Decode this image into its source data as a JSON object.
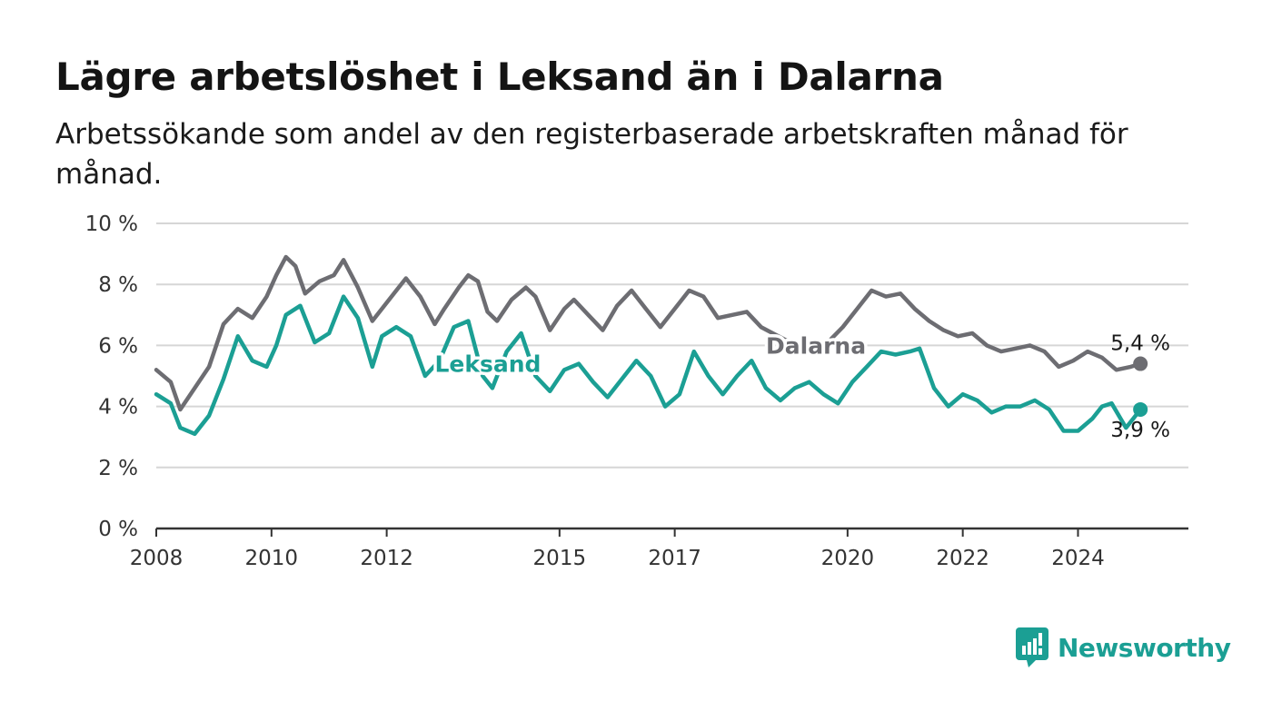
{
  "title": "Lägre arbetslöshet i Leksand än i Dalarna",
  "subtitle": "Arbetssökande som andel av den registerbaserade arbetskraften månad för månad.",
  "brand": {
    "name": "Newsworthy",
    "icon": "newsworthy-logo-icon",
    "color": "#1b9f94"
  },
  "chart_data": {
    "type": "line",
    "title": "Lägre arbetslöshet i Leksand än i Dalarna",
    "subtitle": "Arbetssökande som andel av den registerbaserade arbetskraften månad för månad.",
    "xlabel": "",
    "ylabel": "",
    "xlim": [
      "2008-01",
      "2025-12"
    ],
    "ylim": [
      0,
      10
    ],
    "x_ticks": [
      "2008",
      "2010",
      "2012",
      "2015",
      "2017",
      "2020",
      "2022",
      "2024"
    ],
    "y_ticks": [
      "0 %",
      "2 %",
      "4 %",
      "6 %",
      "8 %",
      "10 %"
    ],
    "y_tick_values": [
      0,
      2,
      4,
      6,
      8,
      10
    ],
    "grid": "horizontal",
    "legend": "inline labels",
    "series": [
      {
        "name": "Dalarna",
        "color": "#6d6d72",
        "end_label": "5,4 %",
        "points": [
          [
            "2008-01",
            5.2
          ],
          [
            "2008-04",
            4.8
          ],
          [
            "2008-06",
            3.9
          ],
          [
            "2008-09",
            4.6
          ],
          [
            "2008-12",
            5.3
          ],
          [
            "2009-03",
            6.7
          ],
          [
            "2009-06",
            7.2
          ],
          [
            "2009-09",
            6.9
          ],
          [
            "2009-12",
            7.6
          ],
          [
            "2010-02",
            8.3
          ],
          [
            "2010-04",
            8.9
          ],
          [
            "2010-06",
            8.6
          ],
          [
            "2010-08",
            7.7
          ],
          [
            "2010-11",
            8.1
          ],
          [
            "2011-02",
            8.3
          ],
          [
            "2011-04",
            8.8
          ],
          [
            "2011-07",
            7.9
          ],
          [
            "2011-10",
            6.8
          ],
          [
            "2011-12",
            7.2
          ],
          [
            "2012-03",
            7.8
          ],
          [
            "2012-05",
            8.2
          ],
          [
            "2012-08",
            7.6
          ],
          [
            "2012-11",
            6.7
          ],
          [
            "2013-01",
            7.2
          ],
          [
            "2013-04",
            7.9
          ],
          [
            "2013-06",
            8.3
          ],
          [
            "2013-08",
            8.1
          ],
          [
            "2013-10",
            7.1
          ],
          [
            "2013-12",
            6.8
          ],
          [
            "2014-03",
            7.5
          ],
          [
            "2014-06",
            7.9
          ],
          [
            "2014-08",
            7.6
          ],
          [
            "2014-11",
            6.5
          ],
          [
            "2015-02",
            7.2
          ],
          [
            "2015-04",
            7.5
          ],
          [
            "2015-07",
            7.0
          ],
          [
            "2015-10",
            6.5
          ],
          [
            "2016-01",
            7.3
          ],
          [
            "2016-04",
            7.8
          ],
          [
            "2016-07",
            7.2
          ],
          [
            "2016-10",
            6.6
          ],
          [
            "2017-01",
            7.2
          ],
          [
            "2017-04",
            7.8
          ],
          [
            "2017-07",
            7.6
          ],
          [
            "2017-10",
            6.9
          ],
          [
            "2018-01",
            7.0
          ],
          [
            "2018-04",
            7.1
          ],
          [
            "2018-07",
            6.6
          ],
          [
            "2019-01",
            6.1
          ],
          [
            "2019-07",
            5.8
          ],
          [
            "2019-12",
            6.6
          ],
          [
            "2020-03",
            7.2
          ],
          [
            "2020-06",
            7.8
          ],
          [
            "2020-09",
            7.6
          ],
          [
            "2020-12",
            7.7
          ],
          [
            "2021-03",
            7.2
          ],
          [
            "2021-06",
            6.8
          ],
          [
            "2021-09",
            6.5
          ],
          [
            "2021-12",
            6.3
          ],
          [
            "2022-03",
            6.4
          ],
          [
            "2022-06",
            6.0
          ],
          [
            "2022-09",
            5.8
          ],
          [
            "2022-12",
            5.9
          ],
          [
            "2023-03",
            6.0
          ],
          [
            "2023-06",
            5.8
          ],
          [
            "2023-09",
            5.3
          ],
          [
            "2023-12",
            5.5
          ],
          [
            "2024-03",
            5.8
          ],
          [
            "2024-06",
            5.6
          ],
          [
            "2024-09",
            5.2
          ],
          [
            "2024-12",
            5.3
          ],
          [
            "2025-02",
            5.4
          ]
        ]
      },
      {
        "name": "Leksand",
        "color": "#1b9f94",
        "end_label": "3,9 %",
        "points": [
          [
            "2008-01",
            4.4
          ],
          [
            "2008-04",
            4.1
          ],
          [
            "2008-06",
            3.3
          ],
          [
            "2008-09",
            3.1
          ],
          [
            "2008-12",
            3.7
          ],
          [
            "2009-03",
            4.9
          ],
          [
            "2009-06",
            6.3
          ],
          [
            "2009-09",
            5.5
          ],
          [
            "2009-12",
            5.3
          ],
          [
            "2010-02",
            6.0
          ],
          [
            "2010-04",
            7.0
          ],
          [
            "2010-07",
            7.3
          ],
          [
            "2010-10",
            6.1
          ],
          [
            "2011-01",
            6.4
          ],
          [
            "2011-04",
            7.6
          ],
          [
            "2011-07",
            6.9
          ],
          [
            "2011-10",
            5.3
          ],
          [
            "2011-12",
            6.3
          ],
          [
            "2012-03",
            6.6
          ],
          [
            "2012-06",
            6.3
          ],
          [
            "2012-09",
            5.0
          ],
          [
            "2012-12",
            5.5
          ],
          [
            "2013-03",
            6.6
          ],
          [
            "2013-06",
            6.8
          ],
          [
            "2013-09",
            5.0
          ],
          [
            "2013-11",
            4.6
          ],
          [
            "2014-02",
            5.8
          ],
          [
            "2014-05",
            6.4
          ],
          [
            "2014-08",
            5.0
          ],
          [
            "2014-11",
            4.5
          ],
          [
            "2015-02",
            5.2
          ],
          [
            "2015-05",
            5.4
          ],
          [
            "2015-08",
            4.8
          ],
          [
            "2015-11",
            4.3
          ],
          [
            "2016-02",
            4.9
          ],
          [
            "2016-05",
            5.5
          ],
          [
            "2016-08",
            5.0
          ],
          [
            "2016-11",
            4.0
          ],
          [
            "2017-02",
            4.4
          ],
          [
            "2017-05",
            5.8
          ],
          [
            "2017-08",
            5.0
          ],
          [
            "2017-11",
            4.4
          ],
          [
            "2018-02",
            5.0
          ],
          [
            "2018-05",
            5.5
          ],
          [
            "2018-08",
            4.6
          ],
          [
            "2018-11",
            4.2
          ],
          [
            "2019-02",
            4.6
          ],
          [
            "2019-05",
            4.8
          ],
          [
            "2019-08",
            4.4
          ],
          [
            "2019-11",
            4.1
          ],
          [
            "2020-02",
            4.8
          ],
          [
            "2020-05",
            5.3
          ],
          [
            "2020-08",
            5.8
          ],
          [
            "2020-11",
            5.7
          ],
          [
            "2021-02",
            5.8
          ],
          [
            "2021-04",
            5.9
          ],
          [
            "2021-07",
            4.6
          ],
          [
            "2021-10",
            4.0
          ],
          [
            "2022-01",
            4.4
          ],
          [
            "2022-04",
            4.2
          ],
          [
            "2022-07",
            3.8
          ],
          [
            "2022-10",
            4.0
          ],
          [
            "2023-01",
            4.0
          ],
          [
            "2023-04",
            4.2
          ],
          [
            "2023-07",
            3.9
          ],
          [
            "2023-10",
            3.2
          ],
          [
            "2024-01",
            3.2
          ],
          [
            "2024-04",
            3.6
          ],
          [
            "2024-06",
            4.0
          ],
          [
            "2024-08",
            4.1
          ],
          [
            "2024-11",
            3.3
          ],
          [
            "2025-02",
            3.9
          ]
        ]
      }
    ]
  }
}
